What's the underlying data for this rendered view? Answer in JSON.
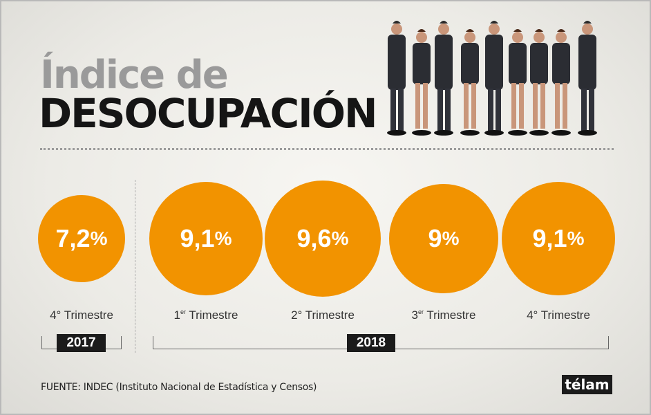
{
  "title": {
    "line1": "Índice de",
    "line2": "DESOCUPACIÓN"
  },
  "quarters": [
    {
      "ord": "4°",
      "sup": "",
      "text": " Trimestre",
      "value": "7,2",
      "unit": "%"
    },
    {
      "ord": "1",
      "sup": "er",
      "text": " Trimestre",
      "value": "9,1",
      "unit": "%"
    },
    {
      "ord": "2°",
      "sup": "",
      "text": " Trimestre",
      "value": "9,6",
      "unit": "%"
    },
    {
      "ord": "3",
      "sup": "er",
      "text": " Trimestre",
      "value": "9",
      "unit": "%"
    },
    {
      "ord": "4°",
      "sup": "",
      "text": " Trimestre",
      "value": "9,1",
      "unit": "%"
    }
  ],
  "years": [
    "2017",
    "2018"
  ],
  "source": "FUENTE: INDEC (Instituto Nacional de Estadística y Censos)",
  "logo": "télam",
  "colors": {
    "accent": "#f29300",
    "dark": "#1b1b1b"
  },
  "chart_data": {
    "type": "bubble",
    "title": "Índice de DESOCUPACIÓN",
    "categories": [
      "4° Trimestre 2017",
      "1er Trimestre 2018",
      "2° Trimestre 2018",
      "3er Trimestre 2018",
      "4° Trimestre 2018"
    ],
    "values": [
      7.2,
      9.1,
      9.6,
      9.0,
      9.1
    ],
    "unit": "%"
  }
}
